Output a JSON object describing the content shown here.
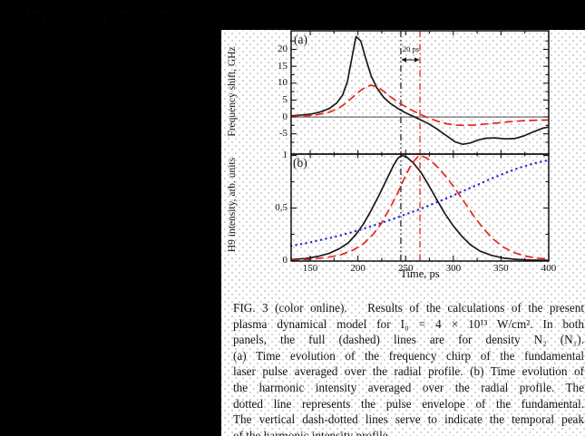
{
  "artifact_text": {
    "row1": "· :·· · ·· ·: ·· · ·· · · ·:· ·· · · ··",
    "row2": "·· · : · ··· · ·: · · ·· :· · ·· · : ··"
  },
  "figure": {
    "panel_a_label": "(a)",
    "panel_b_label": "(b)",
    "ylabel_a": "Frequency shift, GHz",
    "ylabel_b": "H9 intensity, arb. units",
    "xlabel": "Time, ps",
    "annotation_20ps": "20 ps",
    "ytick_labels_a": [
      "20",
      "15",
      "10",
      "5",
      "0",
      "-5"
    ],
    "ytick_labels_b": [
      "1",
      "0,5",
      "0"
    ],
    "xtick_labels": [
      "150",
      "200",
      "250",
      "300",
      "350",
      "400"
    ]
  },
  "colors": {
    "black_curve": "#191919",
    "red_curve": "#e5261d",
    "blue_curve": "#2b2bd5",
    "frame": "#111111",
    "vline_black": "#111111",
    "vline_red": "#e5261d",
    "background": "#000000",
    "panel_bg": "#ffffff"
  },
  "chart_data": [
    {
      "type": "line",
      "panel": "a",
      "ylabel": "Frequency shift, GHz",
      "xlabel": "Time, ps",
      "xlim": [
        130,
        400
      ],
      "ylim": [
        -11,
        25.5
      ],
      "yticks_major": [
        20,
        15,
        10,
        5,
        0,
        -5
      ],
      "yticks_minor": [
        22.5,
        17.5,
        12.5,
        7.5,
        2.5,
        -2.5,
        -7.5
      ],
      "xticks_major": [
        150,
        200,
        250,
        300,
        350,
        400
      ],
      "xticks_minor": [
        175,
        225,
        275,
        325,
        375
      ],
      "zero_line": 0,
      "vlines_ps": [
        245,
        265
      ],
      "annotation": {
        "text": "20 ps",
        "between_ps": [
          245,
          265
        ]
      },
      "series": [
        {
          "name": "density N2 (full line)",
          "style": "solid-black",
          "x": [
            130,
            142,
            152,
            162,
            170,
            178,
            184,
            189,
            193,
            198,
            203,
            208,
            214,
            220,
            227,
            234,
            242,
            250,
            258,
            266,
            274,
            282,
            292,
            302,
            310,
            318,
            326,
            334,
            344,
            354,
            364,
            374,
            384,
            394,
            400
          ],
          "y": [
            0.3,
            0.6,
            0.9,
            1.6,
            2.5,
            4.2,
            6.5,
            10.5,
            16.5,
            23.8,
            22.5,
            17.5,
            12.0,
            8.5,
            5.8,
            4.0,
            2.5,
            1.2,
            0.2,
            -0.9,
            -2.0,
            -3.4,
            -5.4,
            -7.4,
            -8.1,
            -7.7,
            -6.8,
            -6.3,
            -6.2,
            -6.5,
            -6.4,
            -5.6,
            -4.4,
            -3.3,
            -3.0
          ]
        },
        {
          "name": "density N1 (dashed line)",
          "style": "dashed-red",
          "x": [
            130,
            145,
            158,
            170,
            180,
            188,
            196,
            203,
            209,
            214,
            220,
            227,
            234,
            242,
            250,
            258,
            266,
            275,
            284,
            293,
            302,
            312,
            322,
            334,
            346,
            360,
            374,
            388,
            400
          ],
          "y": [
            0.1,
            0.3,
            0.7,
            1.4,
            2.6,
            4.2,
            6.2,
            7.9,
            9.0,
            9.4,
            8.9,
            7.6,
            6.0,
            4.4,
            3.0,
            1.8,
            0.7,
            -0.4,
            -1.3,
            -2.0,
            -2.4,
            -2.5,
            -2.4,
            -2.1,
            -1.8,
            -1.4,
            -1.1,
            -0.95,
            -0.9
          ]
        }
      ]
    },
    {
      "type": "line",
      "panel": "b",
      "ylabel": "H9 intensity, arb. units",
      "xlabel": "Time, ps",
      "xlim": [
        130,
        400
      ],
      "ylim": [
        0,
        1.0
      ],
      "yticks_major": [
        1,
        0.5,
        0
      ],
      "yticks_minor": [
        0.75,
        0.25
      ],
      "xticks_major": [
        150,
        200,
        250,
        300,
        350,
        400
      ],
      "xticks_minor": [
        175,
        225,
        275,
        325,
        375
      ],
      "vlines_ps": [
        245,
        265
      ],
      "series": [
        {
          "name": "density N2 (full line)",
          "style": "solid-black",
          "x": [
            130,
            145,
            158,
            170,
            180,
            190,
            198,
            206,
            214,
            222,
            230,
            237,
            242,
            246,
            251,
            258,
            266,
            274,
            282,
            291,
            300,
            309,
            318,
            328,
            340,
            352,
            365,
            380,
            400
          ],
          "y": [
            0.01,
            0.02,
            0.04,
            0.07,
            0.11,
            0.17,
            0.25,
            0.35,
            0.48,
            0.62,
            0.77,
            0.9,
            0.975,
            1.0,
            0.985,
            0.93,
            0.84,
            0.72,
            0.59,
            0.45,
            0.33,
            0.23,
            0.15,
            0.09,
            0.05,
            0.025,
            0.012,
            0.006,
            0.003
          ]
        },
        {
          "name": "density N1 (dashed line)",
          "style": "dashed-red",
          "x": [
            130,
            150,
            168,
            182,
            195,
            206,
            216,
            225,
            233,
            241,
            248,
            254,
            259,
            264,
            270,
            277,
            285,
            294,
            303,
            312,
            321,
            331,
            341,
            352,
            364,
            377,
            390,
            400
          ],
          "y": [
            0.004,
            0.012,
            0.03,
            0.055,
            0.1,
            0.16,
            0.25,
            0.36,
            0.49,
            0.63,
            0.77,
            0.88,
            0.95,
            1.0,
            0.985,
            0.945,
            0.875,
            0.78,
            0.67,
            0.55,
            0.43,
            0.31,
            0.21,
            0.13,
            0.075,
            0.04,
            0.022,
            0.015
          ]
        },
        {
          "name": "pulse envelope of the fundamental (dotted line)",
          "style": "dotted-blue",
          "x": [
            130,
            145,
            160,
            175,
            190,
            205,
            220,
            235,
            250,
            265,
            280,
            295,
            310,
            325,
            340,
            355,
            370,
            385,
            400
          ],
          "y": [
            0.14,
            0.165,
            0.195,
            0.225,
            0.26,
            0.3,
            0.345,
            0.39,
            0.44,
            0.49,
            0.545,
            0.6,
            0.66,
            0.72,
            0.78,
            0.835,
            0.885,
            0.925,
            0.955
          ]
        }
      ]
    }
  ],
  "caption": {
    "lines": [
      "FIG. 3 (color online).   Results of the calculations of the present",
      "plasma dynamical model for I₀ = 4 × 10¹³ W/cm². In both",
      "panels, the full (dashed) lines are for density N₂ (N₁).",
      "(a) Time evolution of the frequency chirp of the fundamental",
      "laser pulse averaged over the radial profile. (b) Time evolution of",
      "the harmonic intensity averaged over the radial profile. The",
      "dotted line represents the pulse envelope of the fundamental.",
      "The vertical dash-dotted lines serve to indicate the temporal peak",
      "of the harmonic intensity profile."
    ]
  }
}
